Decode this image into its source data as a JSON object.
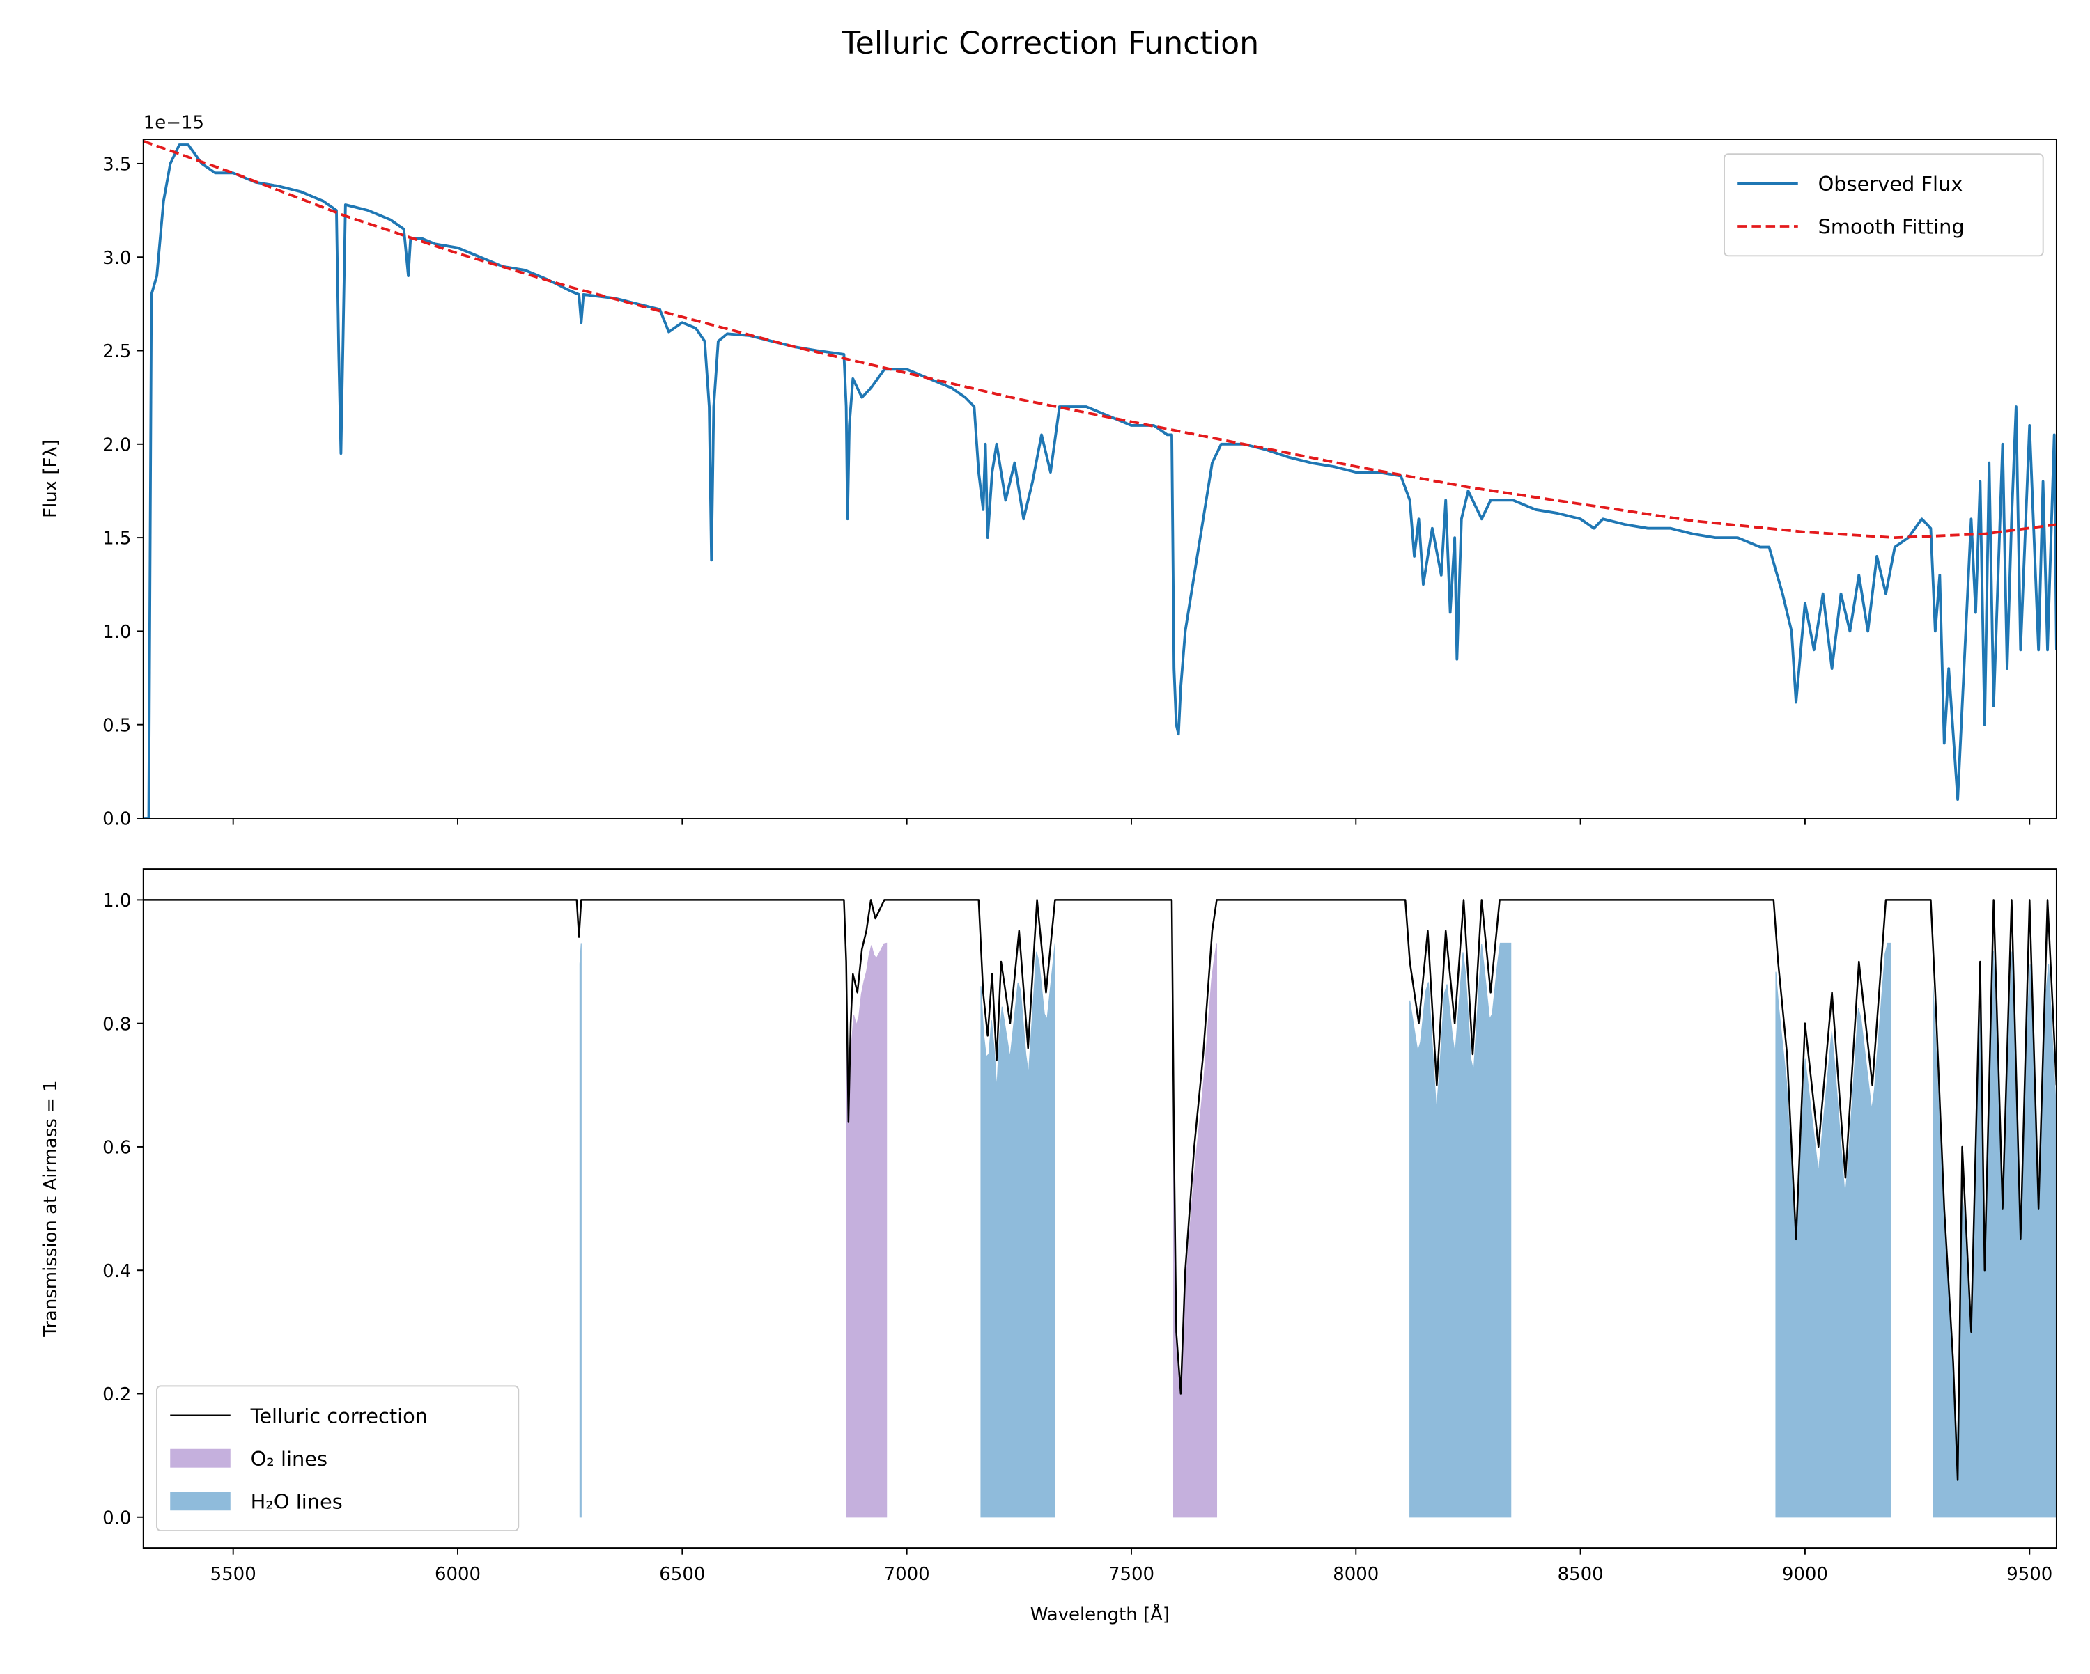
{
  "title": "Telluric Correction Function",
  "chart_data": [
    {
      "type": "line",
      "ylabel": "Flux [Fλ]",
      "y_offset_label": "1e−15",
      "xlim": [
        5300,
        9560
      ],
      "xticks": [
        5500,
        6000,
        6500,
        7000,
        7500,
        8000,
        8500,
        9000,
        9500
      ],
      "show_xtick_labels": false,
      "ylim": [
        0,
        3.63
      ],
      "yticks": [
        {
          "value": 0,
          "label": "0.0"
        },
        0.5,
        {
          "value": 1,
          "label": "1.0"
        },
        1.5,
        {
          "value": 2,
          "label": "2.0"
        },
        2.5,
        {
          "value": 3,
          "label": "3.0"
        },
        3.5
      ],
      "legend": "upper right",
      "series": [
        {
          "name": "Observed Flux",
          "color": "#1f77b4",
          "style": "solid",
          "x": [
            5302,
            5312,
            5318,
            5330,
            5345,
            5360,
            5380,
            5400,
            5430,
            5460,
            5500,
            5550,
            5600,
            5650,
            5700,
            5730,
            5735,
            5740,
            5745,
            5750,
            5800,
            5850,
            5880,
            5890,
            5895,
            5920,
            5950,
            6000,
            6050,
            6100,
            6150,
            6200,
            6250,
            6270,
            6275,
            6280,
            6350,
            6400,
            6450,
            6470,
            6500,
            6530,
            6550,
            6560,
            6565,
            6570,
            6580,
            6600,
            6650,
            6700,
            6750,
            6800,
            6860,
            6865,
            6868,
            6872,
            6880,
            6900,
            6920,
            6950,
            7000,
            7050,
            7100,
            7130,
            7150,
            7160,
            7170,
            7175,
            7180,
            7190,
            7200,
            7220,
            7240,
            7260,
            7280,
            7300,
            7320,
            7340,
            7400,
            7450,
            7500,
            7550,
            7580,
            7590,
            7595,
            7600,
            7605,
            7610,
            7620,
            7640,
            7660,
            7680,
            7700,
            7750,
            7800,
            7850,
            7900,
            7950,
            8000,
            8050,
            8100,
            8120,
            8130,
            8140,
            8150,
            8170,
            8190,
            8200,
            8210,
            8220,
            8225,
            8235,
            8250,
            8280,
            8300,
            8350,
            8400,
            8450,
            8500,
            8530,
            8550,
            8600,
            8650,
            8700,
            8750,
            8800,
            8850,
            8900,
            8920,
            8950,
            8970,
            8980,
            9000,
            9020,
            9040,
            9060,
            9080,
            9100,
            9120,
            9140,
            9160,
            9180,
            9200,
            9230,
            9260,
            9280,
            9290,
            9300,
            9310,
            9320,
            9340,
            9350,
            9370,
            9380,
            9390,
            9400,
            9410,
            9420,
            9440,
            9450,
            9460,
            9470,
            9480,
            9500,
            9520,
            9530,
            9540,
            9555,
            9560
          ],
          "values": [
            0,
            0,
            2.8,
            2.9,
            3.3,
            3.5,
            3.6,
            3.6,
            3.5,
            3.45,
            3.45,
            3.4,
            3.38,
            3.35,
            3.3,
            3.25,
            2.5,
            1.95,
            2.6,
            3.28,
            3.25,
            3.2,
            3.15,
            2.9,
            3.1,
            3.1,
            3.07,
            3.05,
            3.0,
            2.95,
            2.93,
            2.88,
            2.82,
            2.8,
            2.65,
            2.8,
            2.78,
            2.75,
            2.72,
            2.6,
            2.65,
            2.62,
            2.55,
            2.2,
            1.38,
            2.2,
            2.55,
            2.59,
            2.58,
            2.55,
            2.52,
            2.5,
            2.48,
            2.2,
            1.6,
            2.1,
            2.35,
            2.25,
            2.3,
            2.4,
            2.4,
            2.35,
            2.3,
            2.25,
            2.2,
            1.85,
            1.65,
            2.0,
            1.5,
            1.85,
            2.0,
            1.7,
            1.9,
            1.6,
            1.8,
            2.05,
            1.85,
            2.2,
            2.2,
            2.15,
            2.1,
            2.1,
            2.05,
            2.05,
            0.8,
            0.5,
            0.45,
            0.7,
            1.0,
            1.3,
            1.6,
            1.9,
            2.0,
            2.0,
            1.97,
            1.93,
            1.9,
            1.88,
            1.85,
            1.85,
            1.83,
            1.7,
            1.4,
            1.6,
            1.25,
            1.55,
            1.3,
            1.7,
            1.1,
            1.5,
            0.85,
            1.6,
            1.75,
            1.6,
            1.7,
            1.7,
            1.65,
            1.63,
            1.6,
            1.55,
            1.6,
            1.57,
            1.55,
            1.55,
            1.52,
            1.5,
            1.5,
            1.45,
            1.45,
            1.2,
            1.0,
            0.62,
            1.15,
            0.9,
            1.2,
            0.8,
            1.2,
            1.0,
            1.3,
            1.0,
            1.4,
            1.2,
            1.45,
            1.5,
            1.6,
            1.55,
            1.0,
            1.3,
            0.4,
            0.8,
            0.1,
            0.6,
            1.6,
            1.1,
            1.8,
            0.5,
            1.9,
            0.6,
            2.0,
            0.8,
            1.6,
            2.2,
            0.9,
            2.1,
            0.9,
            1.8,
            0.9,
            2.05,
            0.9
          ]
        },
        {
          "name": "Smooth Fitting",
          "color": "#e41a1c",
          "style": "dashed",
          "x": [
            5300,
            5500,
            5750,
            6000,
            6250,
            6500,
            6750,
            7000,
            7250,
            7500,
            7750,
            8000,
            8250,
            8500,
            8750,
            9000,
            9200,
            9400,
            9560
          ],
          "values": [
            3.62,
            3.45,
            3.22,
            3.02,
            2.84,
            2.68,
            2.52,
            2.38,
            2.24,
            2.12,
            2.0,
            1.88,
            1.77,
            1.68,
            1.59,
            1.53,
            1.5,
            1.52,
            1.57
          ]
        }
      ]
    },
    {
      "type": "line",
      "xlabel": "Wavelength [Å]",
      "ylabel": "Transmission at Airmass = 1",
      "xlim": [
        5300,
        9560
      ],
      "xticks": [
        5500,
        6000,
        6500,
        7000,
        7500,
        8000,
        8500,
        9000,
        9500
      ],
      "show_xtick_labels": true,
      "ylim": [
        -0.05,
        1.05
      ],
      "yticks": [
        {
          "value": 0,
          "label": "0.0"
        },
        0.2,
        0.4,
        0.6,
        0.8,
        {
          "value": 1,
          "label": "1.0"
        }
      ],
      "legend": "lower left",
      "series": [
        {
          "name": "Telluric correction",
          "color": "#000000",
          "style": "thin",
          "x": [
            5300,
            6265,
            6270,
            6275,
            6860,
            6865,
            6870,
            6875,
            6880,
            6890,
            6900,
            6910,
            6920,
            6930,
            6950,
            7160,
            7170,
            7180,
            7190,
            7200,
            7210,
            7230,
            7250,
            7270,
            7290,
            7310,
            7330,
            7590,
            7595,
            7600,
            7610,
            7620,
            7640,
            7660,
            7680,
            7690,
            8110,
            8120,
            8140,
            8160,
            8180,
            8200,
            8220,
            8240,
            8260,
            8280,
            8300,
            8320,
            8340,
            8930,
            8940,
            8960,
            8980,
            9000,
            9030,
            9060,
            9090,
            9120,
            9150,
            9180,
            9280,
            9290,
            9310,
            9330,
            9340,
            9350,
            9370,
            9390,
            9400,
            9420,
            9440,
            9460,
            9480,
            9500,
            9520,
            9540,
            9560
          ],
          "values": [
            1,
            1,
            0.94,
            1,
            1,
            0.9,
            0.64,
            0.8,
            0.88,
            0.85,
            0.92,
            0.95,
            1,
            0.97,
            1,
            1,
            0.85,
            0.78,
            0.88,
            0.74,
            0.9,
            0.8,
            0.95,
            0.76,
            1,
            0.85,
            1,
            1,
            0.6,
            0.3,
            0.2,
            0.4,
            0.6,
            0.75,
            0.95,
            1,
            1,
            0.9,
            0.8,
            0.95,
            0.7,
            0.95,
            0.8,
            1,
            0.75,
            1,
            0.85,
            1,
            1,
            1,
            0.9,
            0.75,
            0.45,
            0.8,
            0.6,
            0.85,
            0.55,
            0.9,
            0.7,
            1,
            1,
            0.85,
            0.5,
            0.25,
            0.06,
            0.6,
            0.3,
            0.9,
            0.4,
            1,
            0.5,
            1,
            0.45,
            1,
            0.5,
            1,
            0.7
          ]
        }
      ],
      "fills": [
        {
          "name": "O₂ lines",
          "color": "#c5b0dd",
          "ranges": [
            [
              6865,
              6955
            ],
            [
              7594,
              7690
            ]
          ]
        },
        {
          "name": "H₂O lines",
          "color": "#8fbbdb",
          "ranges": [
            [
              6272,
              6275
            ],
            [
              7165,
              7330
            ],
            [
              8120,
              8345
            ],
            [
              8935,
              9190
            ],
            [
              9285,
              9560
            ]
          ]
        }
      ]
    }
  ]
}
